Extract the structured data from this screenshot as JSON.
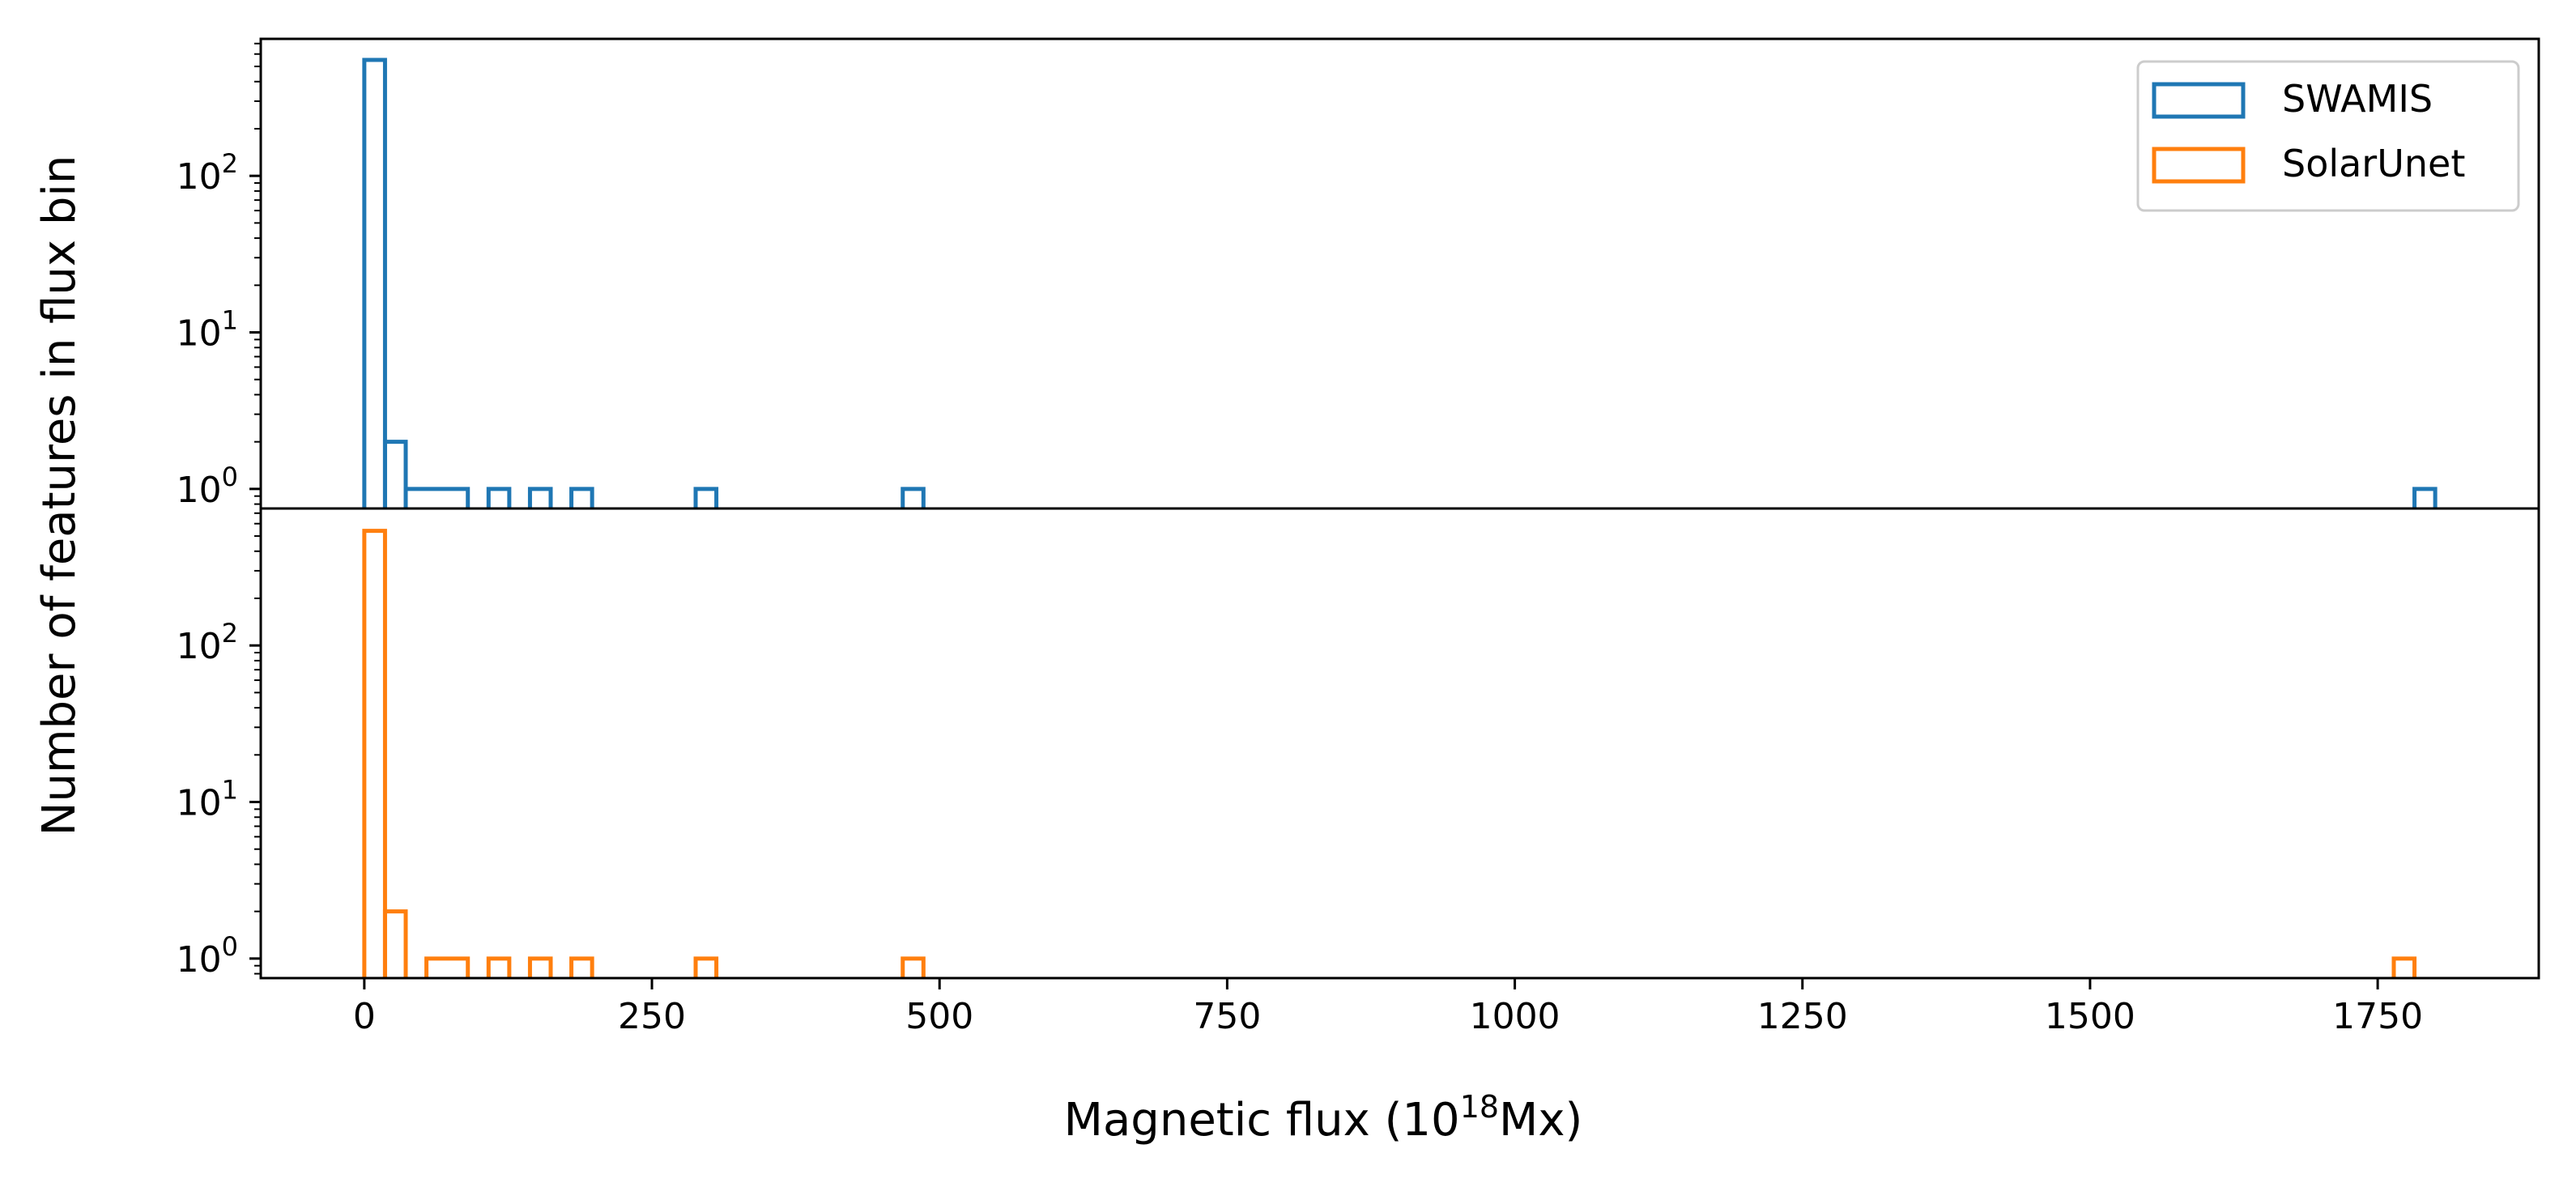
{
  "chart_data": {
    "type": "histogram",
    "layout": "two vertically stacked panels sharing x axis",
    "xlabel": {
      "prefix": "Magnetic flux (10",
      "sup": "18",
      "suffix": "Mx)"
    },
    "ylabel": "Number of features in flux bin",
    "xlim": [
      -90,
      1890
    ],
    "x_ticks": [
      0,
      250,
      500,
      750,
      1000,
      1250,
      1500,
      1750
    ],
    "y_scale": "log",
    "ylim": [
      0.75,
      750
    ],
    "y_ticks": [
      {
        "base": "10",
        "exp": "0",
        "value": 1
      },
      {
        "base": "10",
        "exp": "1",
        "value": 10
      },
      {
        "base": "10",
        "exp": "2",
        "value": 100
      }
    ],
    "legend": {
      "placement": "top-right",
      "entries": [
        "SWAMIS",
        "SolarUnet"
      ]
    },
    "series": [
      {
        "name": "SWAMIS",
        "color": "#1f77b4",
        "bins": [
          {
            "x0": 0,
            "x1": 18,
            "count": 550
          },
          {
            "x0": 18,
            "x1": 36,
            "count": 2
          },
          {
            "x0": 36,
            "x1": 90,
            "count": 1
          },
          {
            "x0": 108,
            "x1": 126,
            "count": 1
          },
          {
            "x0": 144,
            "x1": 162,
            "count": 1
          },
          {
            "x0": 180,
            "x1": 198,
            "count": 1
          },
          {
            "x0": 288,
            "x1": 306,
            "count": 1
          },
          {
            "x0": 468,
            "x1": 486,
            "count": 1
          },
          {
            "x0": 1782,
            "x1": 1800,
            "count": 1
          }
        ]
      },
      {
        "name": "SolarUnet",
        "color": "#ff7f0e",
        "bins": [
          {
            "x0": 0,
            "x1": 18,
            "count": 540
          },
          {
            "x0": 18,
            "x1": 36,
            "count": 2
          },
          {
            "x0": 54,
            "x1": 90,
            "count": 1
          },
          {
            "x0": 108,
            "x1": 126,
            "count": 1
          },
          {
            "x0": 144,
            "x1": 162,
            "count": 1
          },
          {
            "x0": 180,
            "x1": 198,
            "count": 1
          },
          {
            "x0": 288,
            "x1": 306,
            "count": 1
          },
          {
            "x0": 468,
            "x1": 486,
            "count": 1
          },
          {
            "x0": 1764,
            "x1": 1782,
            "count": 1
          }
        ]
      }
    ]
  }
}
